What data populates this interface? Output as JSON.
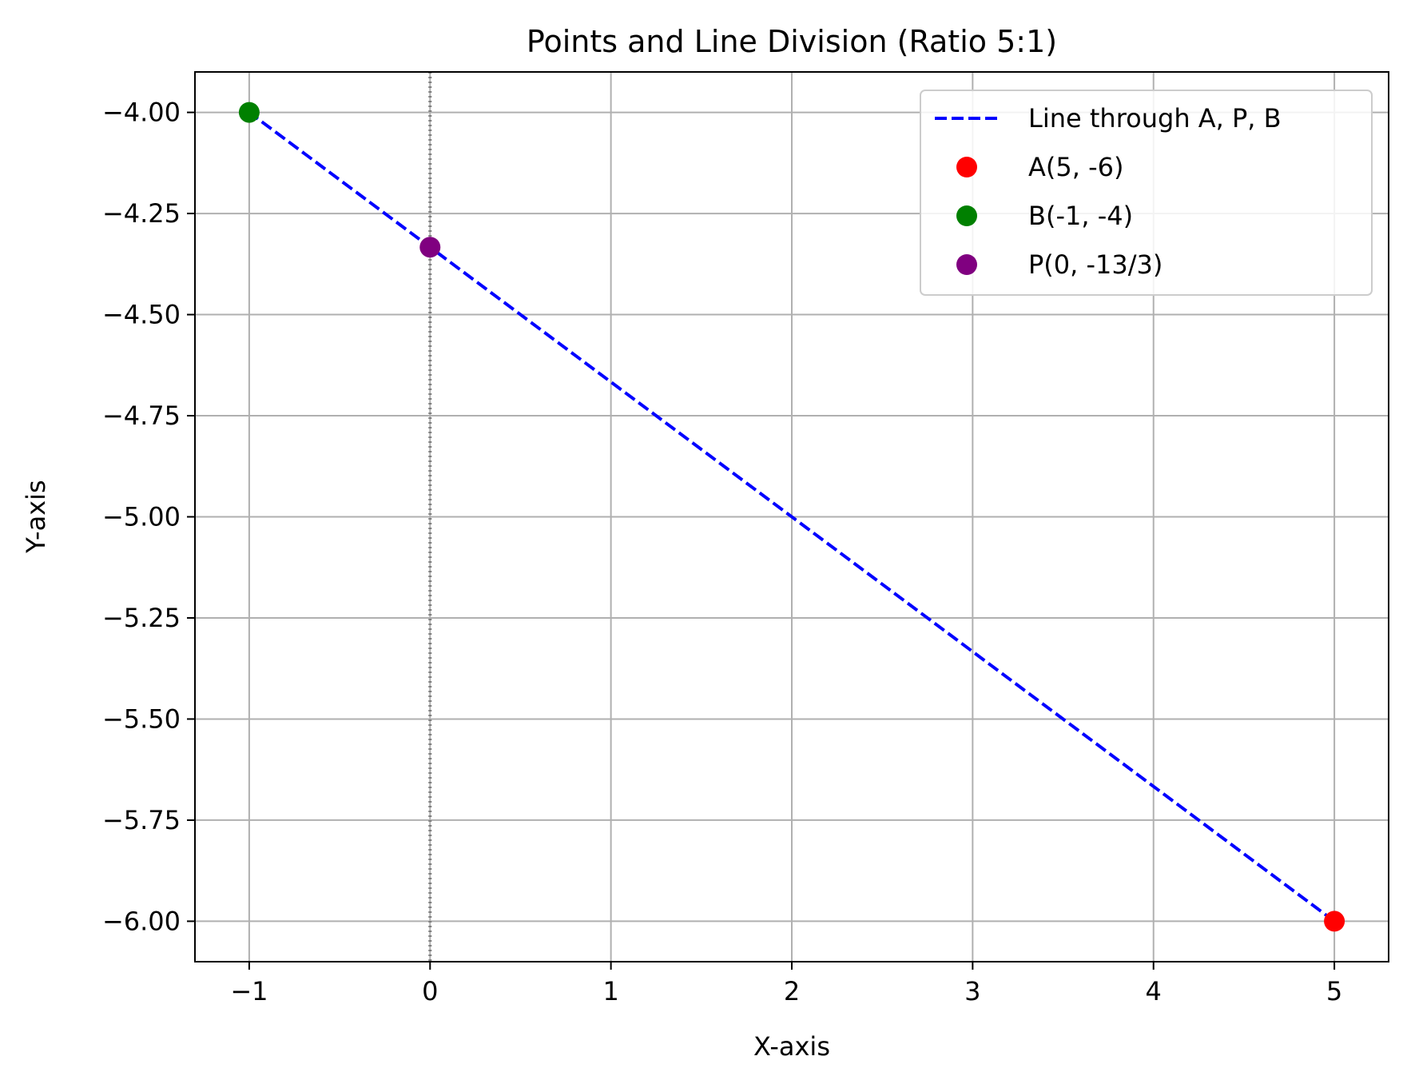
{
  "chart_data": {
    "type": "line",
    "title": "Points and Line Division (Ratio 5:1)",
    "xlabel": "X-axis",
    "ylabel": "Y-axis",
    "xlim": [
      -1.3,
      5.3
    ],
    "ylim": [
      -6.1,
      -3.9
    ],
    "xticks": [
      -1,
      0,
      1,
      2,
      3,
      4,
      5
    ],
    "xtick_labels": [
      "−1",
      "0",
      "1",
      "2",
      "3",
      "4",
      "5"
    ],
    "yticks": [
      -4.0,
      -4.25,
      -4.5,
      -4.75,
      -5.0,
      -5.25,
      -5.5,
      -5.75,
      -6.0
    ],
    "ytick_labels": [
      "−4.00",
      "−4.25",
      "−4.50",
      "−4.75",
      "−5.00",
      "−5.25",
      "−5.50",
      "−5.75",
      "−6.00"
    ],
    "grid": true,
    "legend_position": "top-right",
    "vertical_reference_line": {
      "x": 0,
      "color": "#808080",
      "style": "dotted"
    },
    "series": [
      {
        "name": "Line through A, P, B",
        "kind": "line",
        "style": "dashed",
        "color": "#0000ff",
        "x": [
          5,
          0,
          -1
        ],
        "y": [
          -6,
          -4.3333,
          -4
        ]
      },
      {
        "name": "A(5, -6)",
        "kind": "scatter",
        "color": "#ff0000",
        "x": [
          5
        ],
        "y": [
          -6
        ]
      },
      {
        "name": "B(-1, -4)",
        "kind": "scatter",
        "color": "#008000",
        "x": [
          -1
        ],
        "y": [
          -4
        ]
      },
      {
        "name": "P(0, -13/3)",
        "kind": "scatter",
        "color": "#800080",
        "x": [
          0
        ],
        "y": [
          -4.3333
        ]
      }
    ]
  }
}
